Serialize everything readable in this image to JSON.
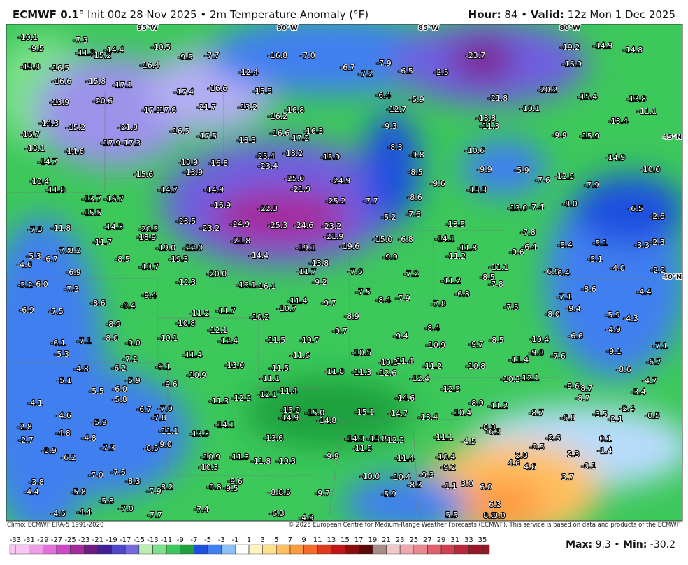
{
  "header": {
    "model": "ECMWF 0.1",
    "init": "° Init 00z 28 Nov 2025 • 2m Temperature Anomaly (°F)",
    "hour_label": "Hour:",
    "hour_value": "84 •",
    "valid_label": "Valid:",
    "valid_value": "12z Mon 1 Dec 2025"
  },
  "footer": {
    "climo": "Climo: ECMWF ERA-5 1991-2020",
    "copyright": "© 2025 European Centre for Medium-Range Weather Forecasts (ECMWF). This service is based on data and products of the ECMWF."
  },
  "coords": [
    "95°W",
    "90°W",
    "85°W",
    "80°W",
    "45°N",
    "40°N"
  ],
  "colorbar": {
    "ticks": [
      -33,
      -31,
      -29,
      -27,
      -25,
      -23,
      -21,
      -19,
      -17,
      -15,
      -13,
      -11,
      -9,
      -7,
      -5,
      -3,
      -1,
      1,
      3,
      5,
      7,
      9,
      11,
      13,
      15,
      17,
      19,
      21,
      23,
      25,
      27,
      29,
      31,
      33,
      35
    ],
    "colors": [
      "#f7c6f2",
      "#ef9be6",
      "#e370da",
      "#cf45c8",
      "#a52a9e",
      "#6e1c82",
      "#3e1f98",
      "#4f46c8",
      "#7468dc",
      "#b9f0b0",
      "#7de08a",
      "#3cc85a",
      "#1ea03c",
      "#1f4fe0",
      "#3f7ff0",
      "#8cc0f8",
      "#ffffff",
      "#fff3c0",
      "#ffe08a",
      "#ffc060",
      "#ff9a40",
      "#f56a28",
      "#e03a1c",
      "#c01818",
      "#8a0c0c",
      "#5a0808",
      "#a88a8a",
      "#f0c8c8",
      "#f0a8b0",
      "#e88890",
      "#e06070",
      "#d04050",
      "#b82838",
      "#981828"
    ]
  },
  "stats": {
    "max_label": "Max:",
    "max_value": "9.3",
    "separator": "•",
    "min_label": "Min:",
    "min_value": "-30.2"
  },
  "map": {
    "labels": [
      "-10.1",
      "-9.5",
      "-7.3",
      "-11.3",
      "-15.2",
      "-14.4",
      "-10.5",
      "-9.5",
      "-7.7",
      "-16.8",
      "-7.0",
      "-13.8",
      "-16.5",
      "-16.4",
      "-12.4",
      "-23.7",
      "-19.2",
      "-14.9",
      "-14.8",
      "-16.9",
      "-6.7",
      "-7.2",
      "-7.9",
      "-6.5",
      "-2.5",
      "-16.6",
      "-15.8",
      "-17.1",
      "-17.4",
      "-16.6",
      "-15.5",
      "-6.4",
      "-5.9",
      "-21.8",
      "-20.2",
      "-13.8",
      "-13.9",
      "-20.6",
      "-17.1",
      "-17.6",
      "-21.7",
      "-13.2",
      "-16.8",
      "-16.2",
      "-12.7",
      "-10.1",
      "-15.4",
      "-11.1",
      "-14.3",
      "-15.2",
      "-21.8",
      "-16.5",
      "-17.5",
      "-13.8",
      "-11.3",
      "-13.4",
      "-16.7",
      "-17.9",
      "-17.3",
      "-13.3",
      "-16.6",
      "-17.2",
      "-16.3",
      "-9.3",
      "-8.3",
      "-9.8",
      "-10.6",
      "-9.9",
      "-15.9",
      "-13.1",
      "-14.6",
      "-25.4",
      "-18.2",
      "-15.9",
      "-14.7",
      "-13.9",
      "-16.8",
      "-23.4",
      "-8.5",
      "-9.9",
      "-5.9",
      "-12.5",
      "-14.9",
      "-10.0",
      "-10.4",
      "-15.6",
      "-13.9",
      "-25.0",
      "-24.9",
      "-11.8",
      "-13.7",
      "-16.7",
      "-14.7",
      "-14.9",
      "-21.9",
      "-13.3",
      "-9.6",
      "-8.6",
      "-7.6",
      "-7.9",
      "-15.5",
      "-16.9",
      "-22.3",
      "-25.2",
      "-7.7",
      "-8.0",
      "-6.5",
      "-23.5",
      "-24.9",
      "-25.3",
      "-24.6",
      "-23.2",
      "-14.3",
      "-20.5",
      "-23.2",
      "-13.0",
      "-7.4",
      "-2.6",
      "-7.3",
      "-11.8",
      "-5.2",
      "-7.6",
      "-13.5",
      "-18.9",
      "-21.9",
      "-21.8",
      "-15.0",
      "-6.8",
      "-14.1",
      "-7.8",
      "-5.4",
      "-5.1",
      "-3.3",
      "-2.3",
      "-11.7",
      "-19.0",
      "-22.0",
      "-19.6",
      "-19.1",
      "-11.8",
      "-6.4",
      "-7.5",
      "-8.2",
      "-5.3",
      "-6.7",
      "-8.5",
      "-19.3",
      "-14.4",
      "-9.0",
      "-11.2",
      "-9.6",
      "-5.1",
      "-4.6",
      "-10.7",
      "-13.8",
      "-11.1",
      "-4.0",
      "-2.2",
      "-6.9",
      "-20.0",
      "-11.7",
      "-7.6",
      "-7.2",
      "-6.0",
      "-6.4",
      "-8.5",
      "-5.2",
      "-6.0",
      "-12.3",
      "-16.1",
      "-16.1",
      "-9.2",
      "-11.2",
      "-7.8",
      "-7.3",
      "-9.4",
      "-7.5",
      "-6.8",
      "-8.6",
      "-4.4",
      "-8.4",
      "-7.9",
      "-7.1",
      "-8.6",
      "-9.4",
      "-11.4",
      "-9.7",
      "-7.8",
      "-7.5",
      "-9.4",
      "-6.9",
      "-7.5",
      "-10.7",
      "-11.2",
      "-11.7",
      "-10.2",
      "-8.9",
      "-8.0",
      "-5.9",
      "-4.3",
      "-10.8",
      "-8.9",
      "-8.4",
      "-4.9",
      "-12.1",
      "-9.7",
      "-9.4",
      "-8.5",
      "-10.4",
      "-6.6",
      "-7.1",
      "-6.1",
      "-7.1",
      "-8.0",
      "-9.0",
      "-10.1",
      "-12.4",
      "-11.5",
      "-10.7",
      "-10.5",
      "-10.9",
      "-9.7",
      "-9.8",
      "-9.1",
      "-5.3",
      "-7.2",
      "-11.4",
      "-11.6",
      "-11.4",
      "-7.6",
      "-6.7",
      "-4.8",
      "-6.2",
      "-9.1",
      "-13.0",
      "-11.5",
      "-10.8",
      "-11.4",
      "-11.2",
      "-10.8",
      "-8.6",
      "-11.8",
      "-11.3",
      "-12.6",
      "-10.9",
      "-11.1",
      "-12.4",
      "-10.2",
      "-12.1",
      "-4.7",
      "-5.1",
      "-5.9",
      "-9.6",
      "-9.6",
      "-8.7",
      "-3.4",
      "-5.5",
      "-6.0",
      "-12.1",
      "-11.4",
      "-12.5",
      "-8.7",
      "-5.8",
      "-4.1",
      "-11.3",
      "-12.2",
      "-14.6",
      "-8.0",
      "-11.2",
      "-2.4",
      "-6.7",
      "-7.0",
      "-15.0",
      "-15.0",
      "-15.1",
      "-14.7",
      "-10.4",
      "-8.7",
      "-3.5",
      "-4.6",
      "-7.8",
      "-14.9",
      "-14.8",
      "-13.4",
      "-6.8",
      "-2.1",
      "-0.5",
      "-2.8",
      "-5.9",
      "-14.1",
      "-8.3",
      "-11.1",
      "-13.3",
      "-4.8",
      "-4.8",
      "-6.3",
      "-14.3",
      "-13.8",
      "-12.2",
      "-11.1",
      "-4.5",
      "-13.6",
      "-2.6",
      "0.1",
      "-2.7",
      "-9.0",
      "-7.3",
      "-8.5",
      "-11.5",
      "-0.5",
      "-1.4",
      "-3.9",
      "-10.9",
      "-11.3",
      "-9.9",
      "-11.4",
      "-10.4",
      "2.8",
      "2.3",
      "-6.2",
      "-11.8",
      "-10.3",
      "4.6",
      "4.6",
      "-9.2",
      "-10.3",
      "-0.1",
      "-7.6",
      "-7.0",
      "-10.0",
      "-10.4",
      "-9.3",
      "3.7",
      "-3.8",
      "-8.3",
      "-9.6",
      "-8.2",
      "-7.9",
      "-9.8",
      "-9.5",
      "-8.3",
      "-1.1",
      "3.0",
      "6.0",
      "-4.4",
      "-5.8",
      "-8.9",
      "-8.5",
      "-9.7",
      "-5.9",
      "-5.8",
      "-7.0",
      "-7.4",
      "6.3",
      "-4.6",
      "-4.4",
      "-7.7",
      "-6.3",
      "-4.9",
      "5.5",
      "8.1",
      "8.0"
    ]
  }
}
